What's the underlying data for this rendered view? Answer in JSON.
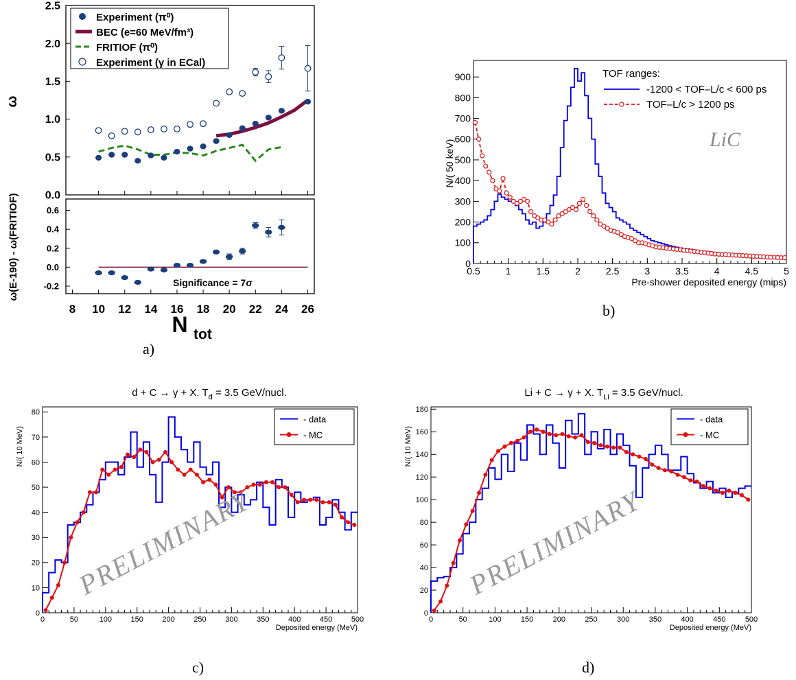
{
  "captions": {
    "a": "a)",
    "b": "b)",
    "c": "c)",
    "d": "d)"
  },
  "colors": {
    "navy": "#1a3f7a",
    "maroon": "#7a1040",
    "green": "#2a8a1f",
    "blue": "#0000e0",
    "red": "#e01010",
    "hist_red": "#d81818",
    "watermark": "#9a9a9a"
  },
  "chart_data": [
    {
      "id": "a_top",
      "type": "scatter",
      "ylabel": "ω",
      "xlim": [
        7.5,
        26.5
      ],
      "ylim": [
        0,
        2.5
      ],
      "yticks": [
        "0.0",
        "0.5",
        "1.0",
        "1.5",
        "2.0",
        "2.5"
      ],
      "legend": [
        "Experiment (π⁰)",
        "BEC (e=60 MeV/fm³)",
        "FRITIOF (π⁰)",
        "Experiment (γ in ECal)"
      ],
      "series": [
        {
          "name": "Experiment (π⁰)",
          "style": "filled",
          "x": [
            10,
            11,
            12,
            13,
            14,
            15,
            16,
            17,
            18,
            19,
            20,
            21,
            22,
            23,
            24,
            26
          ],
          "y": [
            0.49,
            0.53,
            0.53,
            0.45,
            0.52,
            0.49,
            0.57,
            0.61,
            0.64,
            0.71,
            0.79,
            0.88,
            0.94,
            1.02,
            1.11,
            1.23
          ]
        },
        {
          "name": "BEC (e=60 MeV/fm³)",
          "style": "thick-line",
          "x": [
            19,
            20,
            21,
            22,
            23,
            24,
            25,
            26
          ],
          "y": [
            0.78,
            0.8,
            0.84,
            0.89,
            0.95,
            1.03,
            1.12,
            1.25
          ]
        },
        {
          "name": "FRITIOF (π⁰)",
          "style": "dashed",
          "x": [
            10,
            11,
            12,
            13,
            14,
            15,
            16,
            17,
            18,
            19,
            20,
            21,
            22,
            23,
            24
          ],
          "y": [
            0.57,
            0.62,
            0.65,
            0.6,
            0.53,
            0.53,
            0.56,
            0.55,
            0.52,
            0.58,
            0.62,
            0.66,
            0.45,
            0.6,
            0.63
          ]
        },
        {
          "name": "Experiment (γ in ECal)",
          "style": "open",
          "x": [
            10,
            11,
            12,
            13,
            14,
            15,
            16,
            17,
            18,
            19,
            20,
            21,
            22,
            23,
            24,
            26
          ],
          "y": [
            0.85,
            0.78,
            0.84,
            0.83,
            0.86,
            0.87,
            0.87,
            0.93,
            0.94,
            1.21,
            1.36,
            1.34,
            1.62,
            1.56,
            1.81,
            1.67
          ],
          "err": [
            0,
            0,
            0,
            0,
            0,
            0,
            0,
            0,
            0,
            0,
            0,
            0,
            0.05,
            0.08,
            0.15,
            0.3
          ]
        }
      ]
    },
    {
      "id": "a_bottom",
      "type": "scatter",
      "xlabel": "N",
      "xlabel_sub": "tot",
      "ylabel": "ω(E-190) - ω(FRITIOF)",
      "xlim": [
        7.5,
        26.5
      ],
      "ylim": [
        -0.28,
        0.72
      ],
      "xticks": [
        "8",
        "10",
        "12",
        "14",
        "16",
        "18",
        "20",
        "22",
        "24",
        "26"
      ],
      "yticks": [
        "-0.2",
        "0.0",
        "0.2",
        "0.4",
        "0.6"
      ],
      "annotation": "Significance = 7σ",
      "series": [
        {
          "x": [
            10,
            11,
            12,
            13,
            14,
            15,
            16,
            17,
            18,
            19,
            20,
            21,
            22,
            23,
            24
          ],
          "y": [
            -0.06,
            -0.06,
            -0.11,
            -0.16,
            -0.02,
            -0.03,
            0.02,
            0.02,
            0.06,
            0.16,
            0.11,
            0.17,
            0.44,
            0.37,
            0.42
          ],
          "err": [
            0,
            0,
            0,
            0,
            0,
            0,
            0,
            0,
            0,
            0,
            0.03,
            0.03,
            0.03,
            0.05,
            0.08
          ]
        }
      ],
      "reference_line_y": 0
    },
    {
      "id": "b",
      "type": "line",
      "xlabel": "Pre-shower deposited energy (mips)",
      "ylabel": "N/( 50 keV)",
      "xlim": [
        0.5,
        5
      ],
      "ylim": [
        0,
        980
      ],
      "xticks": [
        "0.5",
        "1",
        "1.5",
        "2",
        "2.5",
        "3",
        "3.5",
        "4",
        "4.5",
        "5"
      ],
      "yticks": [
        "0",
        "100",
        "200",
        "300",
        "400",
        "500",
        "600",
        "700",
        "800",
        "900"
      ],
      "legend_title": "TOF ranges:",
      "annotation": "LiC",
      "series": [
        {
          "name": "-1200 < TOF–L/c < 600 ps",
          "style": "histogram",
          "x0": 0.5,
          "bin_width": 0.05,
          "values": [
            180,
            190,
            200,
            210,
            230,
            260,
            300,
            335,
            320,
            310,
            300,
            300,
            280,
            260,
            240,
            210,
            190,
            200,
            170,
            180,
            200,
            240,
            280,
            330,
            420,
            560,
            690,
            760,
            850,
            940,
            880,
            920,
            810,
            700,
            600,
            480,
            420,
            340,
            290,
            270,
            250,
            220,
            210,
            200,
            190,
            170,
            160,
            150,
            140,
            130,
            120,
            110,
            105,
            100,
            95,
            90,
            85,
            82,
            78,
            75,
            72,
            70,
            68,
            65,
            62,
            60,
            58,
            56,
            54,
            52,
            50,
            48,
            47,
            46,
            45,
            44,
            43,
            42,
            41,
            40,
            39,
            38,
            37,
            36,
            35,
            34,
            33,
            32,
            31,
            30
          ]
        },
        {
          "name": "TOF–L/c > 1200 ps",
          "style": "dashed-markers",
          "x0": 0.525,
          "bin_width": 0.05,
          "values": [
            680,
            600,
            520,
            470,
            440,
            400,
            360,
            350,
            410,
            340,
            320,
            300,
            290,
            300,
            310,
            300,
            250,
            230,
            220,
            210,
            210,
            200,
            190,
            210,
            230,
            240,
            250,
            260,
            270,
            260,
            290,
            310,
            280,
            250,
            230,
            210,
            190,
            180,
            170,
            160,
            155,
            150,
            140,
            130,
            125,
            120,
            110,
            100,
            100,
            95,
            90,
            85,
            80,
            78,
            76,
            74,
            72,
            70,
            68,
            66,
            64,
            62,
            60,
            58,
            56,
            54,
            52,
            50,
            48,
            46,
            45,
            44,
            43,
            42,
            41,
            40,
            39,
            38,
            37,
            36,
            35,
            34,
            33,
            32,
            31,
            30,
            30,
            29,
            28,
            28
          ]
        }
      ]
    },
    {
      "id": "c",
      "type": "line",
      "title": "d + C → γ + X. T",
      "title_sub": "d",
      "title_end": " = 3.5 GeV/nucl.",
      "xlabel": "Deposited energy (MeV)",
      "ylabel": "N/( 10 MeV)",
      "watermark": "PRELIMINARY",
      "xlim": [
        0,
        500
      ],
      "ylim": [
        0,
        82
      ],
      "xticks": [
        "0",
        "50",
        "100",
        "150",
        "200",
        "250",
        "300",
        "350",
        "400",
        "450",
        "500"
      ],
      "yticks": [
        "0",
        "10",
        "20",
        "30",
        "40",
        "50",
        "60",
        "70",
        "80"
      ],
      "series": [
        {
          "name": "- data",
          "style": "histogram",
          "x0": 0,
          "bin_width": 10,
          "values": [
            8,
            16,
            21,
            20,
            35,
            36,
            40,
            43,
            48,
            53,
            60,
            60,
            55,
            62,
            72,
            58,
            68,
            55,
            44,
            60,
            78,
            70,
            65,
            60,
            68,
            58,
            55,
            60,
            42,
            50,
            40,
            47,
            43,
            45,
            52,
            42,
            35,
            53,
            50,
            38,
            48,
            44,
            45,
            46,
            35,
            38,
            45,
            40,
            33,
            40
          ]
        },
        {
          "name": "- MC",
          "style": "line-markers",
          "x0": 5,
          "bin_width": 10,
          "values": [
            1,
            6,
            11,
            20,
            30,
            36,
            40,
            48,
            48,
            57,
            55,
            57,
            58,
            63,
            62,
            65,
            64,
            60,
            61,
            64,
            60,
            57,
            55,
            57,
            55,
            52,
            53,
            51,
            46,
            50,
            48,
            48,
            50,
            51,
            51,
            52,
            52,
            50,
            50,
            47,
            44,
            45,
            45,
            45,
            44,
            44,
            43,
            38,
            36,
            35
          ]
        }
      ]
    },
    {
      "id": "d",
      "type": "line",
      "title": "Li + C → γ + X. T",
      "title_sub": "Li",
      "title_end": " = 3.5 GeV/nucl.",
      "xlabel": "Deposited energy (MeV)",
      "ylabel": "N/( 10 MeV)",
      "watermark": "PRELIMINARY",
      "xlim": [
        0,
        500
      ],
      "ylim": [
        0,
        182
      ],
      "xticks": [
        "0",
        "50",
        "100",
        "150",
        "200",
        "250",
        "300",
        "350",
        "400",
        "450",
        "500"
      ],
      "yticks": [
        "0",
        "20",
        "40",
        "60",
        "80",
        "100",
        "120",
        "140",
        "160",
        "180"
      ],
      "series": [
        {
          "name": "- data",
          "style": "histogram",
          "x0": 0,
          "bin_width": 10,
          "values": [
            28,
            31,
            32,
            40,
            52,
            70,
            80,
            100,
            110,
            128,
            118,
            140,
            125,
            150,
            135,
            166,
            158,
            140,
            166,
            150,
            128,
            170,
            158,
            176,
            140,
            160,
            145,
            162,
            140,
            158,
            148,
            130,
            102,
            128,
            140,
            148,
            140,
            126,
            126,
            138,
            123,
            115,
            110,
            116,
            106,
            110,
            102,
            106,
            110,
            112
          ]
        },
        {
          "name": "- MC",
          "style": "line-markers",
          "x0": 5,
          "bin_width": 10,
          "values": [
            2,
            10,
            24,
            44,
            64,
            78,
            90,
            106,
            122,
            135,
            143,
            147,
            150,
            152,
            155,
            160,
            162,
            160,
            158,
            157,
            158,
            156,
            155,
            157,
            151,
            150,
            148,
            147,
            146,
            146,
            142,
            140,
            138,
            136,
            131,
            128,
            126,
            125,
            122,
            120,
            117,
            116,
            112,
            110,
            108,
            106,
            108,
            106,
            104,
            100
          ]
        }
      ]
    }
  ]
}
